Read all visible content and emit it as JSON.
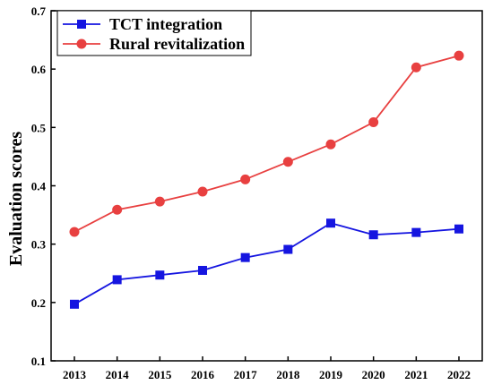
{
  "chart_data": {
    "type": "line",
    "x": [
      2013,
      2014,
      2015,
      2016,
      2017,
      2018,
      2019,
      2020,
      2021,
      2022
    ],
    "series": [
      {
        "name": "TCT integration",
        "values": [
          0.197,
          0.239,
          0.247,
          0.255,
          0.277,
          0.291,
          0.336,
          0.316,
          0.32,
          0.326
        ],
        "color": "#1515e0",
        "marker": "square"
      },
      {
        "name": "Rural revitalization",
        "values": [
          0.321,
          0.359,
          0.373,
          0.39,
          0.411,
          0.441,
          0.471,
          0.509,
          0.603,
          0.623
        ],
        "color": "#e84040",
        "marker": "circle"
      }
    ],
    "xlabel": "",
    "ylabel": "Evaluation scores",
    "ylim": [
      0.1,
      0.7
    ],
    "yticks": [
      "0.1",
      "0.2",
      "0.3",
      "0.4",
      "0.5",
      "0.6",
      "0.7"
    ],
    "xticks": [
      "2013",
      "2014",
      "2015",
      "2016",
      "2017",
      "2018",
      "2019",
      "2020",
      "2021",
      "2022"
    ],
    "legend_position": "top-left",
    "grid": false
  }
}
